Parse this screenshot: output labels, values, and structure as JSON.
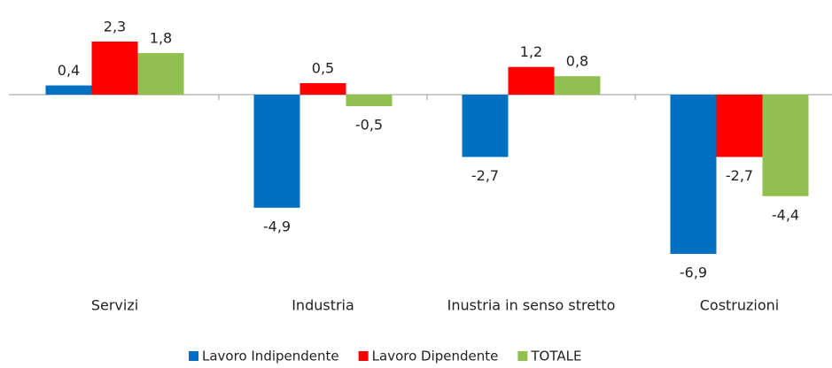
{
  "chart_data": {
    "type": "bar",
    "categories": [
      "Servizi",
      "Industria",
      "Inustria in senso stretto",
      "Costruzioni"
    ],
    "series": [
      {
        "name": "Lavoro Indipendente",
        "color": "#0070c0",
        "values": [
          0.4,
          -4.9,
          -2.7,
          -6.9
        ],
        "value_labels": [
          "0,4",
          "-4,9",
          "-2,7",
          "-6,9"
        ]
      },
      {
        "name": "Lavoro Dipendente",
        "color": "#ff0000",
        "values": [
          2.3,
          0.5,
          1.2,
          -2.7
        ],
        "value_labels": [
          "2,3",
          "0,5",
          "1,2",
          "-2,7"
        ]
      },
      {
        "name": "TOTALE",
        "color": "#92c050",
        "values": [
          1.8,
          -0.5,
          0.8,
          -4.4
        ],
        "value_labels": [
          "1,8",
          "-0,5",
          "0,8",
          "-4,4"
        ]
      }
    ]
  }
}
